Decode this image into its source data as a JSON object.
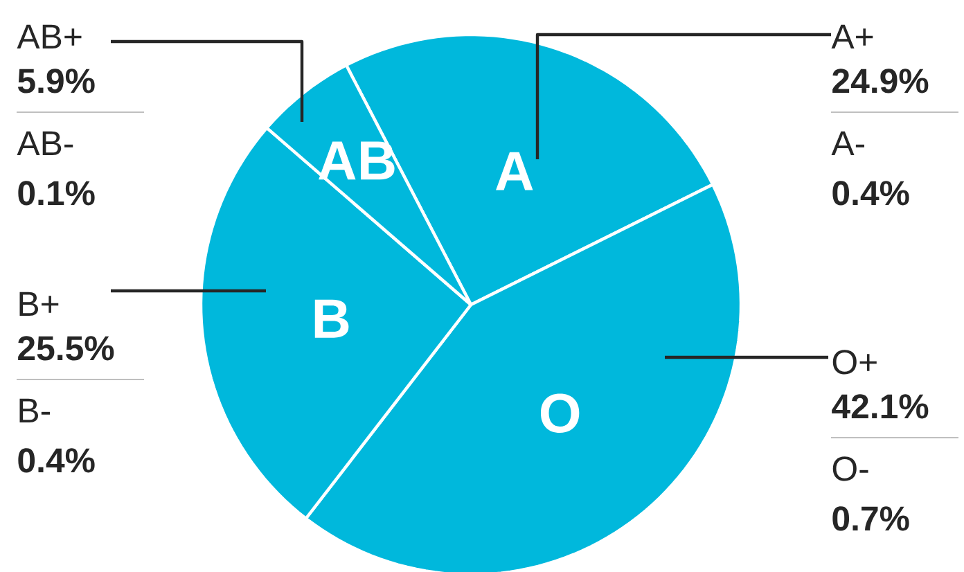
{
  "chart_data": {
    "type": "pie",
    "categories": [
      "A",
      "O",
      "B",
      "AB"
    ],
    "values": [
      25.3,
      42.8,
      25.9,
      6.0
    ],
    "colors": [
      "#00b8dc",
      "#00b8dc",
      "#00b8dc",
      "#00b8dc"
    ],
    "annotations": [
      "A+",
      "24.9%",
      "A-",
      "0.4%",
      "O+",
      "42.1%",
      "O-",
      "0.7%",
      "B+",
      "25.5%",
      "B-",
      "0.4%",
      "AB+",
      "5.9%",
      "AB-",
      "0.1%"
    ]
  }
}
